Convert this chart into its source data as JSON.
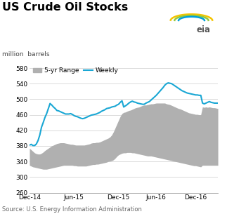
{
  "title": "US Crude Oil Stocks",
  "ylabel": "million  barrels",
  "source": "Source: U.S. Energy Information Administration",
  "ylim": [
    260,
    590
  ],
  "yticks": [
    260,
    300,
    340,
    380,
    420,
    460,
    500,
    540,
    580
  ],
  "xtick_labels": [
    "Dec-14",
    "Jun-15",
    "Dec-15",
    "Jun-16",
    "Dec-16"
  ],
  "weekly_color": "#1AA7D4",
  "range_color": "#B0B0B0",
  "bg_color": "#FFFFFF",
  "title_color": "#000000",
  "title_fontsize": 11.5,
  "legend_fontsize": 6.5,
  "axis_fontsize": 6.5,
  "source_fontsize": 6,
  "line_width": 1.5,
  "weekly_x": [
    0,
    1,
    2,
    3,
    4,
    5,
    6,
    7,
    8,
    9,
    10,
    11,
    12,
    13,
    14,
    15,
    16,
    17,
    18,
    19,
    20,
    21,
    22,
    23,
    24,
    25,
    26,
    27,
    28,
    29,
    30,
    31,
    32,
    33,
    34,
    35,
    36,
    37,
    38,
    39,
    40,
    41,
    42,
    43,
    44,
    45,
    46,
    47,
    48,
    49,
    50,
    51,
    52,
    53,
    54,
    55,
    56,
    57,
    58,
    59,
    60,
    61,
    62,
    63,
    64,
    65,
    66,
    67,
    68,
    69,
    70,
    71,
    72,
    73,
    74,
    75,
    76,
    77,
    78,
    79,
    80,
    81,
    82,
    83,
    84,
    85,
    86,
    87,
    88,
    89,
    90,
    91,
    92,
    93,
    94,
    95,
    96,
    97,
    98,
    99,
    100,
    101,
    102,
    103,
    104,
    105,
    106,
    107,
    108,
    109,
    110
  ],
  "weekly_y": [
    382,
    384,
    381,
    381,
    385,
    394,
    408,
    428,
    440,
    453,
    463,
    476,
    489,
    485,
    480,
    476,
    471,
    470,
    468,
    466,
    464,
    462,
    462,
    462,
    463,
    461,
    458,
    456,
    455,
    453,
    451,
    450,
    451,
    453,
    455,
    457,
    459,
    460,
    461,
    462,
    464,
    466,
    469,
    471,
    473,
    476,
    477,
    478,
    480,
    481,
    482,
    485,
    487,
    492,
    496,
    480,
    483,
    486,
    490,
    493,
    495,
    493,
    492,
    490,
    489,
    488,
    487,
    487,
    490,
    492,
    494,
    498,
    502,
    506,
    510,
    515,
    520,
    525,
    530,
    536,
    540,
    542,
    541,
    540,
    537,
    534,
    531,
    528,
    525,
    522,
    520,
    518,
    516,
    515,
    514,
    513,
    512,
    511,
    511,
    510,
    510,
    490,
    488,
    490,
    492,
    494,
    492,
    491,
    490,
    490,
    490
  ],
  "range_x": [
    0,
    1,
    2,
    3,
    4,
    5,
    6,
    7,
    8,
    9,
    10,
    11,
    12,
    13,
    14,
    15,
    16,
    17,
    18,
    19,
    20,
    21,
    22,
    23,
    24,
    25,
    26,
    27,
    28,
    29,
    30,
    31,
    32,
    33,
    34,
    35,
    36,
    37,
    38,
    39,
    40,
    41,
    42,
    43,
    44,
    45,
    46,
    47,
    48,
    49,
    50,
    51,
    52,
    53,
    54,
    55,
    56,
    57,
    58,
    59,
    60,
    61,
    62,
    63,
    64,
    65,
    66,
    67,
    68,
    69,
    70,
    71,
    72,
    73,
    74,
    75,
    76,
    77,
    78,
    79,
    80,
    81,
    82,
    83,
    84,
    85,
    86,
    87,
    88,
    89,
    90,
    91,
    92,
    93,
    94,
    95,
    96,
    97,
    98,
    99,
    100,
    101,
    102,
    103,
    104,
    105,
    106,
    107,
    108,
    109,
    110
  ],
  "range_upper": [
    374,
    370,
    366,
    362,
    360,
    359,
    359,
    361,
    364,
    368,
    371,
    374,
    377,
    380,
    382,
    384,
    386,
    387,
    388,
    388,
    388,
    387,
    386,
    385,
    384,
    384,
    383,
    382,
    382,
    382,
    382,
    382,
    382,
    383,
    384,
    385,
    387,
    388,
    388,
    389,
    389,
    390,
    392,
    394,
    396,
    398,
    400,
    403,
    408,
    416,
    426,
    436,
    446,
    456,
    463,
    466,
    467,
    469,
    471,
    472,
    474,
    476,
    478,
    479,
    480,
    482,
    484,
    485,
    485,
    486,
    487,
    488,
    488,
    489,
    490,
    490,
    490,
    490,
    490,
    490,
    488,
    487,
    486,
    484,
    482,
    480,
    478,
    476,
    475,
    473,
    471,
    469,
    467,
    465,
    464,
    463,
    462,
    461,
    461,
    460,
    460,
    480,
    479,
    480,
    479,
    480,
    479,
    478,
    478,
    477,
    476
  ],
  "range_lower": [
    330,
    328,
    326,
    325,
    324,
    323,
    322,
    321,
    320,
    320,
    320,
    321,
    322,
    323,
    324,
    325,
    326,
    327,
    328,
    329,
    330,
    330,
    330,
    330,
    330,
    330,
    329,
    329,
    328,
    328,
    328,
    328,
    328,
    328,
    329,
    330,
    331,
    332,
    332,
    333,
    333,
    334,
    335,
    336,
    337,
    338,
    340,
    341,
    342,
    344,
    348,
    353,
    357,
    359,
    361,
    362,
    362,
    363,
    363,
    363,
    362,
    362,
    361,
    360,
    359,
    358,
    357,
    356,
    355,
    354,
    354,
    354,
    353,
    352,
    351,
    350,
    349,
    348,
    347,
    346,
    345,
    344,
    343,
    342,
    341,
    340,
    339,
    338,
    337,
    336,
    335,
    334,
    333,
    332,
    331,
    330,
    329,
    329,
    328,
    327,
    326,
    330,
    330,
    330,
    330,
    330,
    330,
    330,
    330,
    330,
    330
  ],
  "xtick_positions": [
    0,
    26,
    52,
    74,
    97
  ],
  "logo_colors": [
    "#F5C400",
    "#92C83E",
    "#00A0DC"
  ],
  "logo_radii": [
    0.42,
    0.34,
    0.26
  ]
}
